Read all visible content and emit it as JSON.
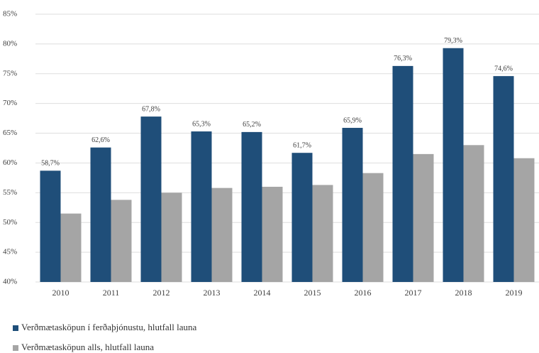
{
  "chart_data": {
    "type": "bar",
    "categories": [
      "2010",
      "2011",
      "2012",
      "2013",
      "2014",
      "2015",
      "2016",
      "2017",
      "2018",
      "2019"
    ],
    "series": [
      {
        "name": "Verðmætasköpun í ferðaþjónustu, hlutfall launa",
        "color": "#1f4e79",
        "values": [
          58.7,
          62.6,
          67.8,
          65.3,
          65.2,
          61.7,
          65.9,
          76.3,
          79.3,
          74.6
        ],
        "value_labels": [
          "58,7%",
          "62,6%",
          "67,8%",
          "65,3%",
          "65,2%",
          "61,7%",
          "65,9%",
          "76,3%",
          "79,3%",
          "74,6%"
        ]
      },
      {
        "name": "Verðmætasköpun alls, hlutfall launa",
        "color": "#a5a5a5",
        "values": [
          51.5,
          53.8,
          55.0,
          55.8,
          56.0,
          56.3,
          58.3,
          61.5,
          63.0,
          60.8
        ]
      }
    ],
    "ylim": [
      40,
      85
    ],
    "yticks": [
      {
        "value": 40,
        "label": "40%"
      },
      {
        "value": 45,
        "label": "45%"
      },
      {
        "value": 50,
        "label": "50%"
      },
      {
        "value": 55,
        "label": "55%"
      },
      {
        "value": 60,
        "label": "60%"
      },
      {
        "value": 65,
        "label": "65%"
      },
      {
        "value": 70,
        "label": "70%"
      },
      {
        "value": 75,
        "label": "75%"
      },
      {
        "value": 80,
        "label": "80%"
      },
      {
        "value": 85,
        "label": "85%"
      }
    ],
    "grid": true,
    "legend": "bottom-left"
  }
}
